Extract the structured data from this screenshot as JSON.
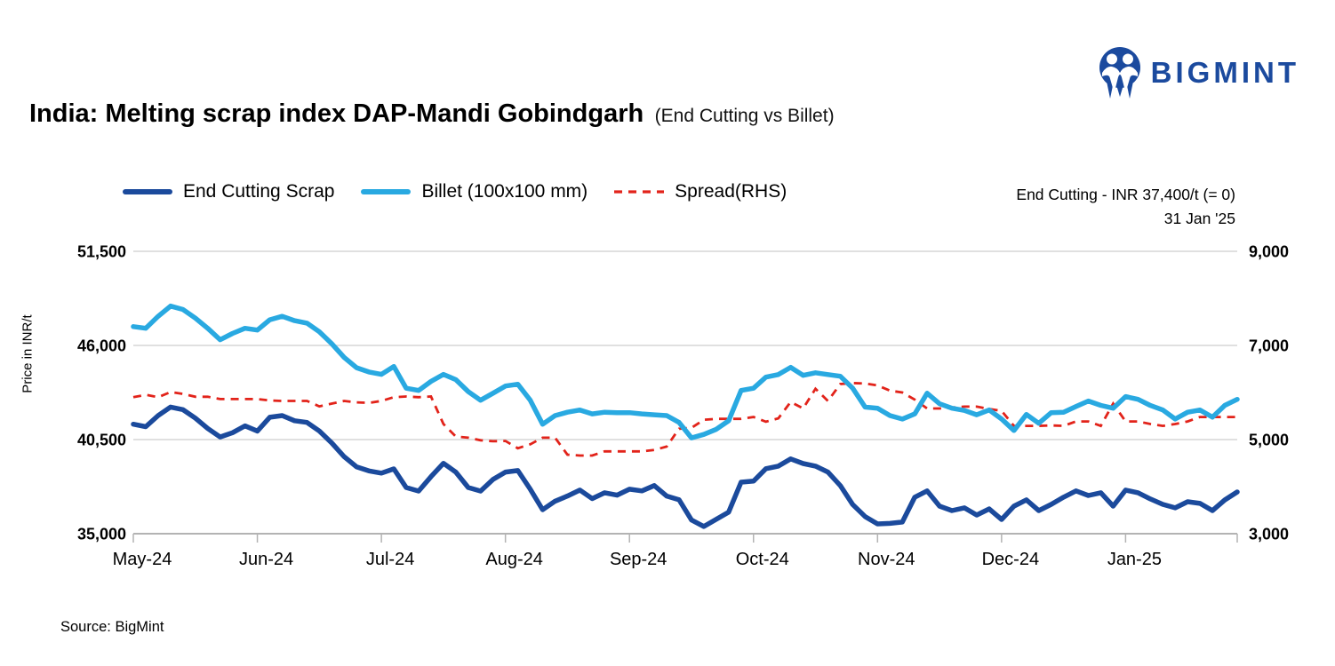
{
  "logo": {
    "text": "BIGMINT",
    "color": "#1b4a9e"
  },
  "title": {
    "main": "India: Melting scrap index DAP-Mandi Gobindgarh",
    "suffix": "(End Cutting vs Billet)"
  },
  "legend": {
    "items": [
      {
        "label": "End Cutting Scrap"
      },
      {
        "label": "Billet (100x100 mm)"
      },
      {
        "label": "Spread(RHS)"
      }
    ]
  },
  "annotation": {
    "line1": "End Cutting - INR 37,400/t (= 0)",
    "line2": "31 Jan '25"
  },
  "source": "Source: BigMint",
  "chart_data": {
    "type": "line",
    "title": "India: Melting scrap index DAP-Mandi Gobindgarh (End Cutting vs Billet)",
    "legend_position": "top",
    "grid": "horizontal",
    "x_axis": {
      "tick_labels": [
        "May-24",
        "Jun-24",
        "Jul-24",
        "Aug-24",
        "Sep-24",
        "Oct-24",
        "Nov-24",
        "Dec-24",
        "Jan-25"
      ],
      "points_per_month": 10
    },
    "left_axis": {
      "label": "Price in INR/t",
      "range": [
        35000,
        51500
      ],
      "ticks": [
        35000,
        40500,
        46000,
        51500
      ],
      "tick_labels": [
        "35,000",
        "40,500",
        "46,000",
        "51,500"
      ]
    },
    "right_axis": {
      "range": [
        3000,
        9000
      ],
      "ticks": [
        3000,
        5000,
        7000,
        9000
      ],
      "tick_labels": [
        "3,000",
        "5,000",
        "7,000",
        "9,000"
      ]
    },
    "series": [
      {
        "name": "End Cutting Scrap",
        "axis": "left",
        "color": "#1b4a9c",
        "style": "solid",
        "values": [
          41400,
          41250,
          41900,
          42400,
          42250,
          41750,
          41150,
          40650,
          40900,
          41300,
          41000,
          41800,
          41900,
          41600,
          41500,
          41000,
          40300,
          39500,
          38900,
          38670,
          38540,
          38790,
          37700,
          37490,
          38330,
          39110,
          38600,
          37700,
          37490,
          38170,
          38600,
          38690,
          37600,
          36400,
          36900,
          37200,
          37550,
          37050,
          37390,
          37250,
          37600,
          37500,
          37810,
          37200,
          36980,
          35800,
          35420,
          35840,
          36260,
          38010,
          38070,
          38800,
          38950,
          39370,
          39100,
          38950,
          38600,
          37810,
          36700,
          36000,
          35570,
          35600,
          35680,
          37130,
          37500,
          36610,
          36350,
          36510,
          36090,
          36450,
          35830,
          36610,
          36975,
          36350,
          36710,
          37130,
          37500,
          37230,
          37390,
          36610,
          37550,
          37390,
          37030,
          36710,
          36510,
          36870,
          36770,
          36350,
          36970,
          37440
        ]
      },
      {
        "name": "Billet (100x100 mm)",
        "axis": "left",
        "color": "#29a9e1",
        "style": "solid",
        "values": [
          47100,
          47000,
          47700,
          48300,
          48100,
          47600,
          47000,
          46330,
          46700,
          47000,
          46900,
          47500,
          47700,
          47450,
          47300,
          46800,
          46100,
          45300,
          44700,
          44450,
          44310,
          44770,
          43500,
          43370,
          43900,
          44310,
          44000,
          43300,
          42800,
          43210,
          43630,
          43730,
          42800,
          41400,
          41900,
          42100,
          42230,
          42000,
          42100,
          42070,
          42070,
          42000,
          41950,
          41900,
          41500,
          40600,
          40800,
          41100,
          41600,
          43370,
          43500,
          44150,
          44300,
          44720,
          44250,
          44400,
          44300,
          44200,
          43500,
          42400,
          42330,
          41900,
          41700,
          42000,
          43210,
          42590,
          42330,
          42200,
          41950,
          42230,
          41700,
          41030,
          41970,
          41450,
          42070,
          42100,
          42430,
          42750,
          42500,
          42330,
          43010,
          42850,
          42490,
          42230,
          41700,
          42100,
          42230,
          41810,
          42500,
          42850
        ]
      },
      {
        "name": "Spread(RHS)",
        "axis": "right",
        "color": "#e2231a",
        "style": "dashed",
        "values": [
          5900,
          5950,
          5900,
          6010,
          5970,
          5910,
          5910,
          5860,
          5860,
          5860,
          5860,
          5830,
          5820,
          5820,
          5820,
          5705,
          5765,
          5820,
          5790,
          5780,
          5820,
          5900,
          5915,
          5900,
          5915,
          5330,
          5065,
          5040,
          4985,
          4965,
          4970,
          4815,
          4900,
          5040,
          5040,
          4680,
          4660,
          4660,
          4750,
          4750,
          4750,
          4750,
          4780,
          4850,
          5230,
          5250,
          5420,
          5440,
          5440,
          5440,
          5480,
          5380,
          5450,
          5800,
          5660,
          6080,
          5820,
          6180,
          6200,
          6190,
          6150,
          6040,
          6000,
          5850,
          5660,
          5660,
          5680,
          5700,
          5700,
          5650,
          5610,
          5290,
          5290,
          5290,
          5300,
          5290,
          5385,
          5385,
          5290,
          5765,
          5385,
          5385,
          5330,
          5290,
          5330,
          5385,
          5480,
          5480,
          5480,
          5480
        ]
      }
    ]
  }
}
